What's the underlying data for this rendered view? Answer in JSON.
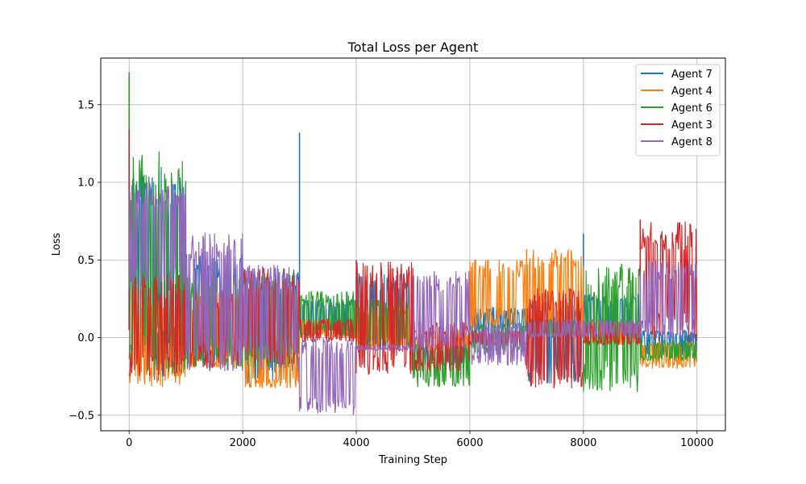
{
  "chart_data": {
    "type": "line",
    "title": "Total Loss per Agent",
    "xlabel": "Training Step",
    "ylabel": "Loss",
    "xlim": [
      -500,
      10500
    ],
    "ylim": [
      -0.6,
      1.8
    ],
    "xticks": [
      0,
      2000,
      4000,
      6000,
      8000,
      10000
    ],
    "yticks": [
      -0.5,
      0.0,
      0.5,
      1.0,
      1.5
    ],
    "xtick_labels": [
      "0",
      "2000",
      "4000",
      "6000",
      "8000",
      "10000"
    ],
    "ytick_labels": [
      "−0.5",
      "0.0",
      "0.5",
      "1.0",
      "1.5"
    ],
    "grid": true,
    "legend_position": "top-right",
    "series": [
      {
        "name": "Agent 7",
        "color": "#1f77b4",
        "segments": [
          {
            "x": [
              0,
              1000
            ],
            "low": -0.28,
            "high": 1.1
          },
          {
            "x": [
              1000,
              2000
            ],
            "low": -0.22,
            "high": 0.55
          },
          {
            "x": [
              2000,
              3000
            ],
            "low": -0.3,
            "high": 0.45
          },
          {
            "x": [
              3000,
              4000
            ],
            "low": 0.0,
            "high": 0.25
          },
          {
            "x": [
              4000,
              5000
            ],
            "low": -0.08,
            "high": 0.42
          },
          {
            "x": [
              5000,
              6000
            ],
            "low": -0.18,
            "high": -0.04
          },
          {
            "x": [
              6000,
              7000
            ],
            "low": 0.02,
            "high": 0.2
          },
          {
            "x": [
              7000,
              8000
            ],
            "low": -0.3,
            "high": 0.25
          },
          {
            "x": [
              8000,
              9000
            ],
            "low": -0.05,
            "high": 0.28
          },
          {
            "x": [
              9000,
              10000
            ],
            "low": -0.12,
            "high": 0.05
          }
        ],
        "spikes": [
          {
            "x": 3000,
            "y": 1.32
          },
          {
            "x": 8000,
            "y": 0.67
          },
          {
            "x": 0,
            "y": 1.05
          }
        ]
      },
      {
        "name": "Agent 4",
        "color": "#ff7f0e",
        "segments": [
          {
            "x": [
              0,
              1000
            ],
            "low": -0.32,
            "high": 0.25
          },
          {
            "x": [
              1000,
              2000
            ],
            "low": -0.2,
            "high": 0.3
          },
          {
            "x": [
              2000,
              3000
            ],
            "low": -0.33,
            "high": -0.02
          },
          {
            "x": [
              3000,
              4000
            ],
            "low": 0.0,
            "high": 0.12
          },
          {
            "x": [
              4000,
              5000
            ],
            "low": -0.08,
            "high": 0.2
          },
          {
            "x": [
              5000,
              6000
            ],
            "low": -0.08,
            "high": 0.05
          },
          {
            "x": [
              6000,
              7000
            ],
            "low": 0.05,
            "high": 0.5
          },
          {
            "x": [
              7000,
              8000
            ],
            "low": 0.0,
            "high": 0.57
          },
          {
            "x": [
              8000,
              9000
            ],
            "low": -0.05,
            "high": 0.12
          },
          {
            "x": [
              9000,
              10000
            ],
            "low": -0.2,
            "high": -0.02
          }
        ],
        "spikes": [
          {
            "x": 6100,
            "y": 0.5
          },
          {
            "x": 7000,
            "y": 0.57
          }
        ]
      },
      {
        "name": "Agent 6",
        "color": "#2ca02c",
        "segments": [
          {
            "x": [
              0,
              1000
            ],
            "low": -0.25,
            "high": 1.2
          },
          {
            "x": [
              1000,
              2000
            ],
            "low": -0.2,
            "high": 0.4
          },
          {
            "x": [
              2000,
              3000
            ],
            "low": -0.2,
            "high": 0.42
          },
          {
            "x": [
              3000,
              4000
            ],
            "low": 0.0,
            "high": 0.3
          },
          {
            "x": [
              4000,
              5000
            ],
            "low": -0.07,
            "high": 0.25
          },
          {
            "x": [
              5000,
              6000
            ],
            "low": -0.32,
            "high": -0.04
          },
          {
            "x": [
              6000,
              7000
            ],
            "low": -0.1,
            "high": 0.1
          },
          {
            "x": [
              7000,
              8000
            ],
            "low": 0.0,
            "high": 0.12
          },
          {
            "x": [
              8000,
              9000
            ],
            "low": -0.36,
            "high": 0.48
          },
          {
            "x": [
              9000,
              10000
            ],
            "low": -0.15,
            "high": -0.02
          }
        ],
        "spikes": [
          {
            "x": 0,
            "y": 1.71
          }
        ]
      },
      {
        "name": "Agent 3",
        "color": "#d62728",
        "segments": [
          {
            "x": [
              0,
              1000
            ],
            "low": -0.25,
            "high": 0.42
          },
          {
            "x": [
              1000,
              2000
            ],
            "low": -0.2,
            "high": 0.3
          },
          {
            "x": [
              2000,
              3000
            ],
            "low": -0.18,
            "high": 0.45
          },
          {
            "x": [
              3000,
              4000
            ],
            "low": -0.03,
            "high": 0.12
          },
          {
            "x": [
              4000,
              5000
            ],
            "low": -0.26,
            "high": 0.5
          },
          {
            "x": [
              5000,
              6000
            ],
            "low": -0.22,
            "high": 0.1
          },
          {
            "x": [
              6000,
              7000
            ],
            "low": -0.05,
            "high": 0.05
          },
          {
            "x": [
              7000,
              8000
            ],
            "low": -0.33,
            "high": 0.32
          },
          {
            "x": [
              8000,
              9000
            ],
            "low": -0.05,
            "high": 0.1
          },
          {
            "x": [
              9000,
              10000
            ],
            "low": -0.03,
            "high": 0.76
          }
        ],
        "spikes": [
          {
            "x": 0,
            "y": 1.34
          },
          {
            "x": 9000,
            "y": 0.76
          },
          {
            "x": 4000,
            "y": 0.5
          }
        ]
      },
      {
        "name": "Agent 8",
        "color": "#9467bd",
        "segments": [
          {
            "x": [
              0,
              1000
            ],
            "low": 0.3,
            "high": 1.0
          },
          {
            "x": [
              1000,
              2000
            ],
            "low": -0.22,
            "high": 0.68
          },
          {
            "x": [
              2000,
              3000
            ],
            "low": -0.22,
            "high": 0.47
          },
          {
            "x": [
              3000,
              4000
            ],
            "low": -0.5,
            "high": 0.0
          },
          {
            "x": [
              4000,
              5000
            ],
            "low": -0.08,
            "high": -0.05
          },
          {
            "x": [
              5000,
              6000
            ],
            "low": -0.1,
            "high": 0.43
          },
          {
            "x": [
              6000,
              7000
            ],
            "low": -0.18,
            "high": 0.1
          },
          {
            "x": [
              7000,
              8000
            ],
            "low": 0.0,
            "high": 0.12
          },
          {
            "x": [
              8000,
              9000
            ],
            "low": 0.0,
            "high": 0.12
          },
          {
            "x": [
              9000,
              10000
            ],
            "low": -0.02,
            "high": 0.5
          }
        ],
        "spikes": []
      }
    ]
  }
}
